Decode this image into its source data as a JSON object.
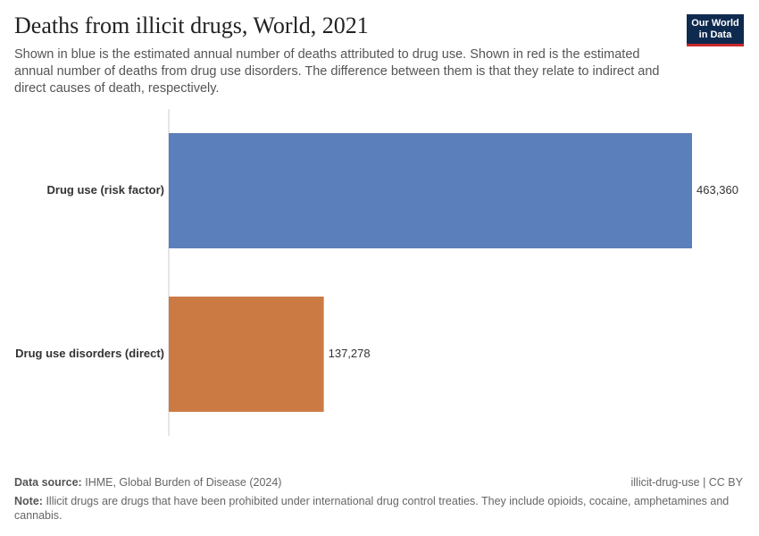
{
  "chart_data": {
    "type": "hbar",
    "title": "Deaths from illicit drugs, World, 2021",
    "subtitle": "Shown in blue is the estimated annual number of deaths attributed to drug use. Shown in red is the estimated annual number of deaths from drug use disorders. The difference between them is that they relate to indirect and direct causes of death, respectively.",
    "categories": [
      "Drug use (risk factor)",
      "Drug use disorders (direct)"
    ],
    "values": [
      463360,
      137278
    ],
    "value_labels": [
      "463,360",
      "137,278"
    ],
    "colors": [
      "#5b7fbb",
      "#cc7a44"
    ]
  },
  "logo": [
    "Our World",
    "in Data"
  ],
  "footer": {
    "source_label": "Data source:",
    "source": "IHME, Global Burden of Disease (2024)",
    "slug": "illicit-drug-use | CC BY",
    "note_label": "Note:",
    "note": "Illicit drugs are drugs that have been prohibited under international drug control treaties. They include opioids, cocaine, amphetamines and cannabis."
  }
}
